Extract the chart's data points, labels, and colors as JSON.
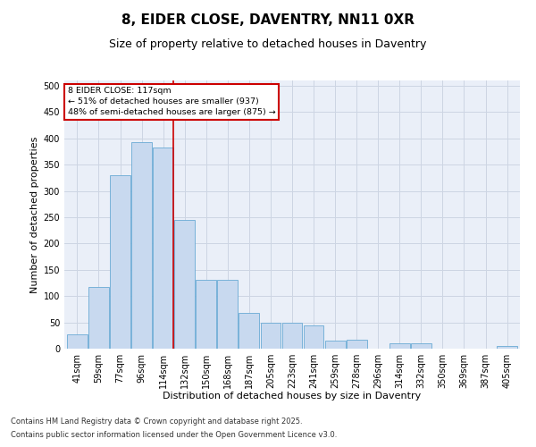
{
  "title": "8, EIDER CLOSE, DAVENTRY, NN11 0XR",
  "subtitle": "Size of property relative to detached houses in Daventry",
  "xlabel": "Distribution of detached houses by size in Daventry",
  "ylabel": "Number of detached properties",
  "categories": [
    "41sqm",
    "59sqm",
    "77sqm",
    "96sqm",
    "114sqm",
    "132sqm",
    "150sqm",
    "168sqm",
    "187sqm",
    "205sqm",
    "223sqm",
    "241sqm",
    "259sqm",
    "278sqm",
    "296sqm",
    "314sqm",
    "332sqm",
    "350sqm",
    "369sqm",
    "387sqm",
    "405sqm"
  ],
  "values": [
    28,
    118,
    330,
    393,
    383,
    245,
    131,
    131,
    68,
    50,
    50,
    44,
    15,
    17,
    0,
    10,
    10,
    0,
    0,
    0,
    5
  ],
  "bar_color": "#c8d9ef",
  "bar_edge_color": "#6aaad4",
  "grid_color": "#cdd5e3",
  "background_color": "#eaeff8",
  "vline_x_index": 4,
  "vline_color": "#cc0000",
  "annotation_text": "8 EIDER CLOSE: 117sqm\n← 51% of detached houses are smaller (937)\n48% of semi-detached houses are larger (875) →",
  "annotation_box_color": "#cc0000",
  "footnote1": "Contains HM Land Registry data © Crown copyright and database right 2025.",
  "footnote2": "Contains public sector information licensed under the Open Government Licence v3.0.",
  "ylim": [
    0,
    510
  ],
  "yticks": [
    0,
    50,
    100,
    150,
    200,
    250,
    300,
    350,
    400,
    450,
    500
  ],
  "title_fontsize": 11,
  "subtitle_fontsize": 9,
  "label_fontsize": 8,
  "tick_fontsize": 7
}
